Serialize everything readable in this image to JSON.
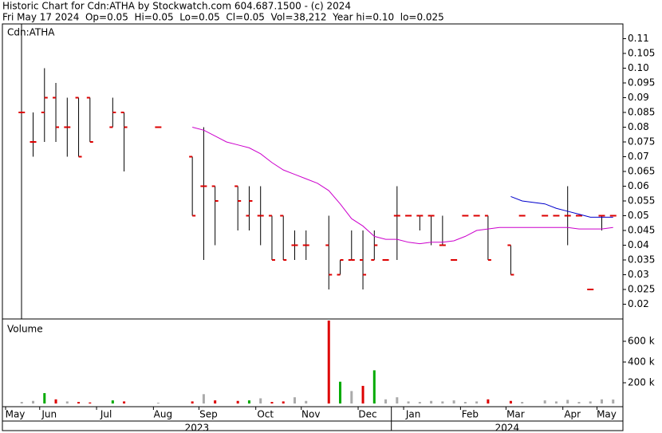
{
  "header": {
    "title": "Historic Chart for Cdn:ATHA by Stockwatch.com 604.687.1500 - (c) 2024",
    "summary": "Fri May 17 2024  Op=0.05  Hi=0.05  Lo=0.05  Cl=0.05  Vol=38,212  Year hi=0.10  lo=0.025"
  },
  "chart_data": [
    {
      "type": "ohlc",
      "label": "Cdn:ATHA",
      "categories": [
        "May",
        null,
        null,
        "Jun",
        null,
        null,
        null,
        null,
        "Jul",
        null,
        null,
        null,
        null,
        "Aug",
        null,
        null,
        null,
        "Sep",
        null,
        null,
        null,
        null,
        "Oct",
        null,
        null,
        null,
        "Nov",
        null,
        null,
        null,
        null,
        "Dec",
        null,
        null,
        null,
        "Jan",
        null,
        null,
        null,
        null,
        "Feb",
        null,
        null,
        null,
        "Mar",
        null,
        null,
        null,
        null,
        "Apr",
        null,
        null,
        "May",
        null
      ],
      "x_groups": [
        "2023",
        "2024"
      ],
      "open": [
        null,
        0.085,
        0.075,
        0.085,
        0.09,
        0.08,
        0.09,
        0.09,
        null,
        0.08,
        0.085,
        null,
        null,
        0.08,
        null,
        null,
        0.07,
        0.06,
        0.06,
        null,
        0.06,
        0.05,
        0.05,
        0.05,
        0.05,
        0.04,
        0.04,
        null,
        0.04,
        0.03,
        0.035,
        0.035,
        0.035,
        0.035,
        0.05,
        0.05,
        0.05,
        0.05,
        0.04,
        0.035,
        0.05,
        0.05,
        0.05,
        null,
        0.04,
        0.05,
        null,
        0.05,
        0.05,
        0.05,
        0.05,
        0.025,
        0.05,
        0.05
      ],
      "high": [
        null,
        0.085,
        0.085,
        0.1,
        0.095,
        0.09,
        0.09,
        0.09,
        null,
        0.09,
        0.085,
        null,
        null,
        0.08,
        null,
        null,
        0.07,
        0.08,
        0.06,
        null,
        0.06,
        0.06,
        0.06,
        0.05,
        0.05,
        0.045,
        0.045,
        null,
        0.05,
        0.035,
        0.045,
        0.045,
        0.045,
        0.035,
        0.06,
        0.05,
        0.05,
        0.05,
        0.05,
        0.035,
        0.05,
        0.05,
        0.05,
        null,
        0.04,
        0.05,
        null,
        0.05,
        0.05,
        0.06,
        0.05,
        0.025,
        0.05,
        0.05
      ],
      "low": [
        null,
        0.085,
        0.07,
        0.075,
        0.075,
        0.07,
        0.07,
        0.075,
        null,
        0.08,
        0.065,
        null,
        null,
        0.08,
        null,
        null,
        0.05,
        0.035,
        0.04,
        null,
        0.045,
        0.045,
        0.04,
        0.035,
        0.035,
        0.035,
        0.035,
        null,
        0.025,
        0.03,
        0.035,
        0.025,
        0.035,
        0.035,
        0.035,
        0.05,
        0.045,
        0.04,
        0.04,
        0.035,
        0.05,
        0.05,
        0.035,
        null,
        0.03,
        0.05,
        null,
        0.05,
        0.05,
        0.04,
        0.05,
        0.025,
        0.045,
        0.05
      ],
      "close": [
        null,
        0.085,
        0.075,
        0.09,
        0.08,
        0.08,
        0.07,
        0.075,
        null,
        0.085,
        0.08,
        null,
        null,
        0.08,
        null,
        null,
        0.05,
        0.06,
        0.055,
        null,
        0.055,
        0.055,
        0.05,
        0.035,
        0.035,
        0.04,
        0.04,
        null,
        0.03,
        0.035,
        0.035,
        0.03,
        0.04,
        0.035,
        0.05,
        0.05,
        0.05,
        0.05,
        0.04,
        0.035,
        0.05,
        0.05,
        0.035,
        null,
        0.03,
        0.05,
        null,
        0.05,
        0.05,
        0.05,
        0.05,
        0.025,
        0.05,
        0.05
      ],
      "bar_color": "#000000",
      "tick_color": "#dd0000",
      "series": [
        {
          "color": "#cc00cc",
          "values": [
            null,
            null,
            null,
            null,
            null,
            null,
            null,
            null,
            null,
            null,
            null,
            null,
            null,
            null,
            null,
            null,
            0.08,
            0.079,
            0.077,
            0.075,
            0.074,
            0.073,
            0.071,
            0.068,
            0.0655,
            0.064,
            0.0625,
            0.061,
            0.0585,
            0.054,
            0.049,
            0.0465,
            0.043,
            0.042,
            0.042,
            0.041,
            0.0405,
            0.041,
            0.041,
            0.0415,
            0.043,
            0.045,
            0.0455,
            0.046,
            0.046,
            0.046,
            0.046,
            0.046,
            0.046,
            0.046,
            0.0455,
            0.0455,
            0.0455,
            0.046
          ]
        },
        {
          "color": "#0000cc",
          "values": [
            null,
            null,
            null,
            null,
            null,
            null,
            null,
            null,
            null,
            null,
            null,
            null,
            null,
            null,
            null,
            null,
            null,
            null,
            null,
            null,
            null,
            null,
            null,
            null,
            null,
            null,
            null,
            null,
            null,
            null,
            null,
            null,
            null,
            null,
            null,
            null,
            null,
            null,
            null,
            null,
            null,
            null,
            null,
            null,
            0.0565,
            0.055,
            0.0545,
            0.054,
            0.0525,
            0.0515,
            0.0505,
            0.0495,
            0.0495,
            0.0495
          ]
        }
      ],
      "ylim": [
        0.015,
        0.115
      ],
      "yticks": [
        0.11,
        0.105,
        {
          "value": 0.1,
          "label": "0.10"
        },
        0.095,
        0.09,
        0.085,
        0.08,
        0.075,
        0.07,
        0.065,
        0.06,
        0.055,
        0.05,
        0.045,
        0.04,
        0.035,
        0.03,
        0.025,
        0.02
      ]
    },
    {
      "type": "bar",
      "label": "Volume",
      "values": [
        null,
        15000,
        25000,
        100000,
        40000,
        20000,
        15000,
        10000,
        null,
        30000,
        20000,
        null,
        null,
        8000,
        null,
        null,
        20000,
        90000,
        30000,
        null,
        25000,
        30000,
        50000,
        15000,
        20000,
        60000,
        25000,
        null,
        800000,
        210000,
        120000,
        170000,
        320000,
        40000,
        60000,
        20000,
        15000,
        25000,
        20000,
        30000,
        15000,
        20000,
        40000,
        null,
        25000,
        15000,
        null,
        30000,
        20000,
        35000,
        15000,
        20000,
        40000,
        38212
      ],
      "up_color": "#00aa00",
      "down_color": "#dd0000",
      "flat_color": "#aaaaaa",
      "ylim": [
        0,
        800000
      ],
      "yticks": [
        {
          "value": 200000,
          "label": "200 k"
        },
        {
          "value": 400000,
          "label": "400 k"
        },
        {
          "value": 600000,
          "label": "600 k"
        }
      ]
    }
  ]
}
